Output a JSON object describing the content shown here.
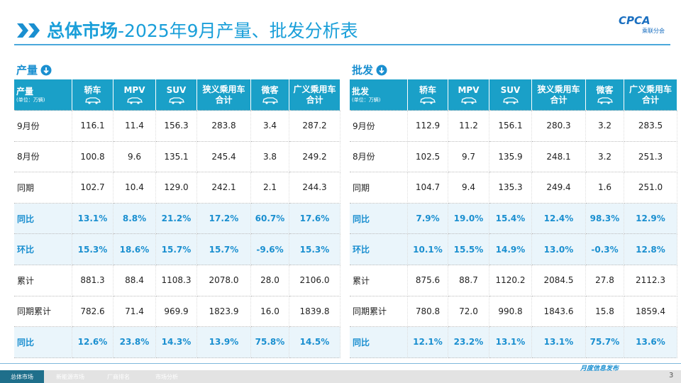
{
  "header": {
    "title_bold": "总体市场",
    "title_rest": "-2025年9月产量、批发分析表",
    "logo": "CPCA",
    "logo_sub": "乘联分会"
  },
  "tables": [
    {
      "section": "产量",
      "corner": "产量",
      "corner_unit": "(单位：万辆)",
      "columns": [
        [
          "轿车"
        ],
        [
          "MPV"
        ],
        [
          "SUV"
        ],
        [
          "狭义乘用车",
          "合计"
        ],
        [
          "微客"
        ],
        [
          "广义乘用车",
          "合计"
        ]
      ],
      "rows": [
        [
          "9月份",
          "116.1",
          "11.4",
          "156.3",
          "283.8",
          "3.4",
          "287.2"
        ],
        [
          "8月份",
          "100.8",
          "9.6",
          "135.1",
          "245.4",
          "3.8",
          "249.2"
        ],
        [
          "同期",
          "102.7",
          "10.4",
          "129.0",
          "242.1",
          "2.1",
          "244.3"
        ],
        [
          "同比",
          "13.1%",
          "8.8%",
          "21.2%",
          "17.2%",
          "60.7%",
          "17.6%"
        ],
        [
          "环比",
          "15.3%",
          "18.6%",
          "15.7%",
          "15.7%",
          "-9.6%",
          "15.3%"
        ],
        [
          "累计",
          "881.3",
          "88.4",
          "1108.3",
          "2078.0",
          "28.0",
          "2106.0"
        ],
        [
          "同期累计",
          "782.6",
          "71.4",
          "969.9",
          "1823.9",
          "16.0",
          "1839.8"
        ],
        [
          "同比",
          "12.6%",
          "23.8%",
          "14.3%",
          "13.9%",
          "75.8%",
          "14.5%"
        ]
      ]
    },
    {
      "section": "批发",
      "corner": "批发",
      "corner_unit": "(单位：万辆)",
      "columns": [
        [
          "轿车"
        ],
        [
          "MPV"
        ],
        [
          "SUV"
        ],
        [
          "狭义乘用车",
          "合计"
        ],
        [
          "微客"
        ],
        [
          "广义乘用车",
          "合计"
        ]
      ],
      "rows": [
        [
          "9月份",
          "112.9",
          "11.2",
          "156.1",
          "280.3",
          "3.2",
          "283.5"
        ],
        [
          "8月份",
          "102.5",
          "9.7",
          "135.9",
          "248.1",
          "3.2",
          "251.3"
        ],
        [
          "同期",
          "104.7",
          "9.4",
          "135.3",
          "249.4",
          "1.6",
          "251.0"
        ],
        [
          "同比",
          "7.9%",
          "19.0%",
          "15.4%",
          "12.4%",
          "98.3%",
          "12.9%"
        ],
        [
          "环比",
          "10.1%",
          "15.5%",
          "14.9%",
          "13.0%",
          "-0.3%",
          "12.8%"
        ],
        [
          "累计",
          "875.6",
          "88.7",
          "1120.2",
          "2084.5",
          "27.8",
          "2112.3"
        ],
        [
          "同期累计",
          "780.8",
          "72.0",
          "990.8",
          "1843.6",
          "15.8",
          "1859.4"
        ],
        [
          "同比",
          "12.1%",
          "23.2%",
          "13.1%",
          "13.1%",
          "75.7%",
          "13.6%"
        ]
      ]
    }
  ],
  "footer": {
    "tabs": [
      "总体市场",
      "新能源市场",
      "厂商排名",
      "市场分析"
    ],
    "note": "月度信息发布",
    "page": "3"
  }
}
